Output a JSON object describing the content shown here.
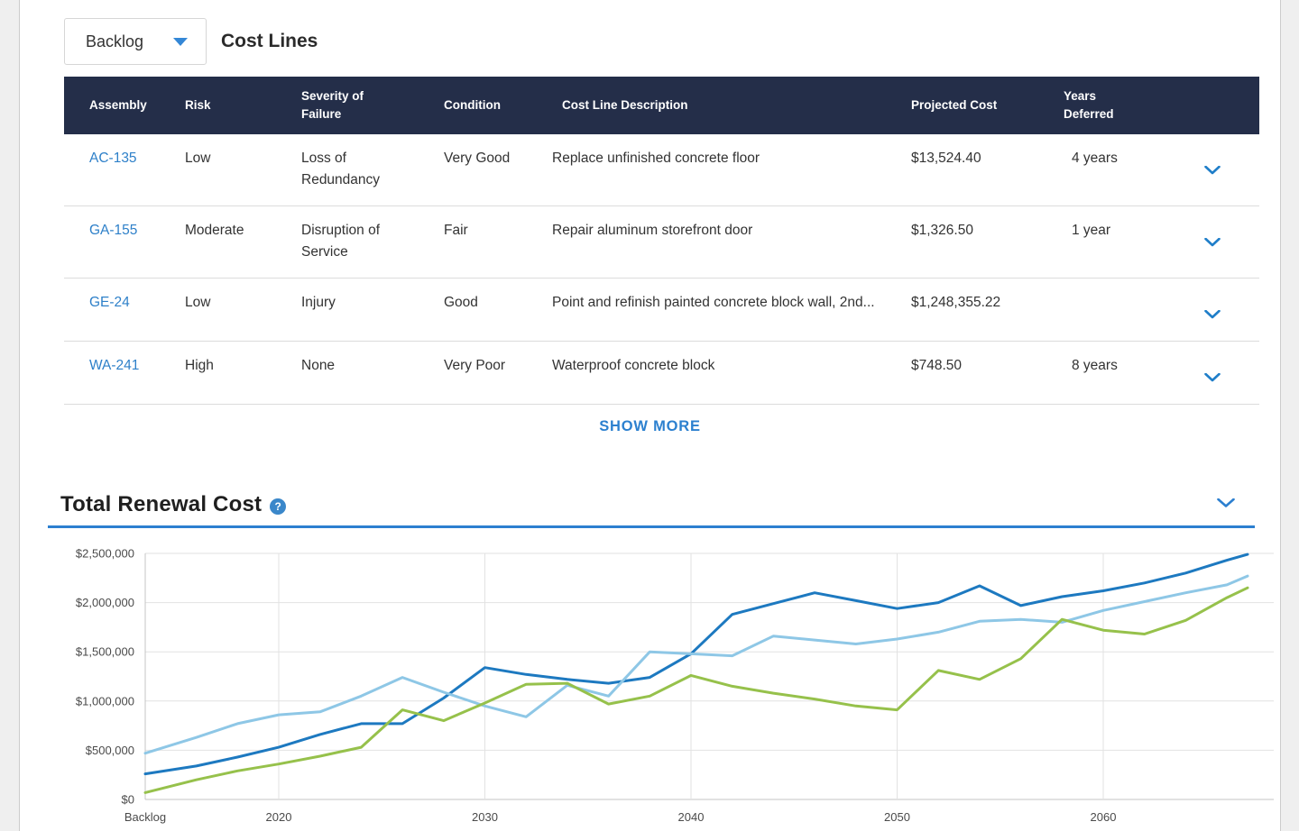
{
  "toolbar": {
    "dropdown_value": "Backlog",
    "title": "Cost Lines"
  },
  "cost_table": {
    "columns": [
      "Assembly",
      "Risk",
      "Severity of Failure",
      "Condition",
      "Cost Line Description",
      "Projected Cost",
      "Years Deferred"
    ],
    "rows": [
      {
        "assembly": "AC-135",
        "risk": "Low",
        "severity": "Loss of Redundancy",
        "condition": "Very Good",
        "description": "Replace unfinished concrete floor",
        "projected_cost": "$13,524.40",
        "years_deferred": "4 years"
      },
      {
        "assembly": "GA-155",
        "risk": "Moderate",
        "severity": "Disruption of Service",
        "condition": "Fair",
        "description": "Repair aluminum storefront door",
        "projected_cost": "$1,326.50",
        "years_deferred": "1 year"
      },
      {
        "assembly": "GE-24",
        "risk": "Low",
        "severity": "Injury",
        "condition": "Good",
        "description": "Point and refinish painted concrete block wall, 2nd...",
        "projected_cost": "$1,248,355.22",
        "years_deferred": ""
      },
      {
        "assembly": "WA-241",
        "risk": "High",
        "severity": "None",
        "condition": "Very Poor",
        "description": "Waterproof concrete block",
        "projected_cost": "$748.50",
        "years_deferred": "8 years"
      }
    ],
    "show_more_label": "SHOW MORE"
  },
  "renewal_section": {
    "title": "Total Renewal Cost",
    "help_icon_glyph": "?"
  },
  "chart_data": {
    "type": "line",
    "title": "Total Renewal Cost",
    "ylim": [
      0,
      2500000
    ],
    "grid": true,
    "legend": "none",
    "y_ticks": [
      {
        "label": "$0",
        "value": 0
      },
      {
        "label": "$500,000",
        "value": 500000
      },
      {
        "label": "$1,000,000",
        "value": 1000000
      },
      {
        "label": "$1,500,000",
        "value": 1500000
      },
      {
        "label": "$2,000,000",
        "value": 2000000
      },
      {
        "label": "$2,500,000",
        "value": 2500000
      }
    ],
    "x_ticks": [
      "Backlog",
      2020,
      2030,
      2040,
      2050,
      2060
    ],
    "categories": [
      "Backlog",
      2016,
      2018,
      2020,
      2022,
      2024,
      2026,
      2028,
      2030,
      2032,
      2034,
      2036,
      2038,
      2040,
      2042,
      2044,
      2046,
      2048,
      2050,
      2052,
      2054,
      2056,
      2058,
      2060,
      2062,
      2064,
      2066,
      2067
    ],
    "series": [
      {
        "id": "series-dark-blue",
        "color": "#1d79c0",
        "values": [
          260000,
          340000,
          430000,
          530000,
          660000,
          770000,
          770000,
          1030000,
          1340000,
          1270000,
          1220000,
          1180000,
          1240000,
          1480000,
          1880000,
          1990000,
          2100000,
          2020000,
          1940000,
          2000000,
          2170000,
          1970000,
          2060000,
          2120000,
          2200000,
          2300000,
          2430000,
          2490000
        ]
      },
      {
        "id": "series-light-blue",
        "color": "#8ec7e6",
        "values": [
          470000,
          630000,
          770000,
          860000,
          890000,
          1050000,
          1240000,
          1090000,
          950000,
          840000,
          1160000,
          1050000,
          1500000,
          1480000,
          1460000,
          1660000,
          1620000,
          1580000,
          1630000,
          1700000,
          1810000,
          1830000,
          1800000,
          1920000,
          2010000,
          2100000,
          2180000,
          2270000
        ]
      },
      {
        "id": "series-green",
        "color": "#96c14b",
        "values": [
          70000,
          200000,
          290000,
          360000,
          440000,
          530000,
          910000,
          800000,
          980000,
          1170000,
          1180000,
          970000,
          1050000,
          1260000,
          1150000,
          1080000,
          1020000,
          950000,
          910000,
          1310000,
          1220000,
          1430000,
          1830000,
          1720000,
          1680000,
          1820000,
          2050000,
          2150000
        ]
      }
    ]
  },
  "colors": {
    "accent_blue": "#2c7fd0",
    "table_header_bg": "#242e49",
    "link_blue": "#2e80c9",
    "grid_line": "#e2e2e2",
    "axis_line": "#c4c4c4"
  }
}
